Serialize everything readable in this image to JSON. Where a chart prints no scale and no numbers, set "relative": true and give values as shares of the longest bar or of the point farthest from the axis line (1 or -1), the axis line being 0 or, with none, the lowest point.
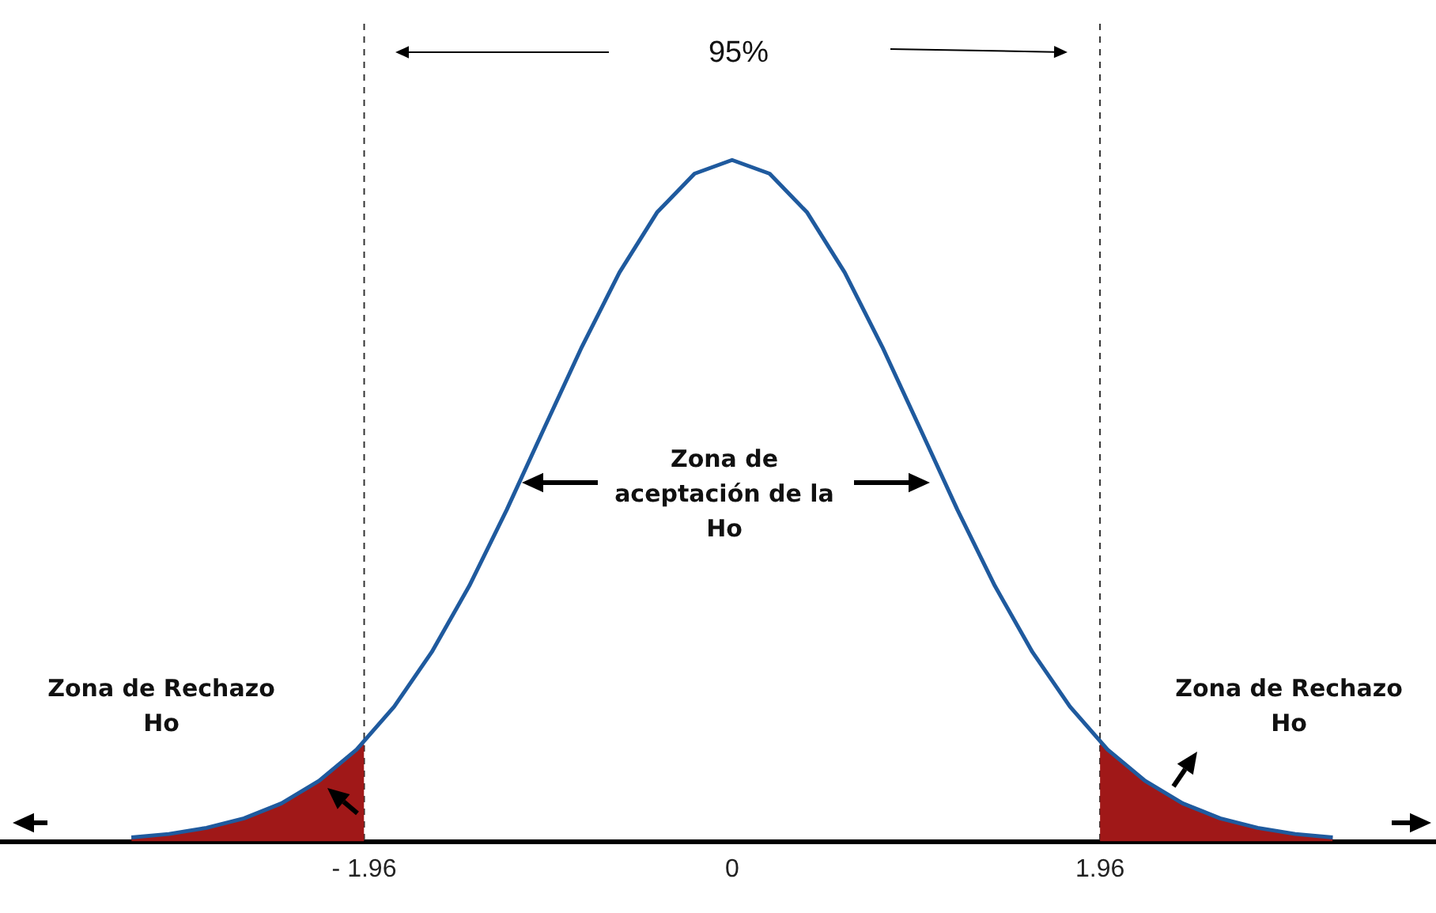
{
  "chart_data": {
    "type": "line",
    "relative": true,
    "xlim": [
      -3.9,
      3.75
    ],
    "xticks": [
      {
        "value": -1.96,
        "label": "- 1.96"
      },
      0,
      1.96
    ],
    "series": [
      {
        "type": "line",
        "color": "#1f5a9e",
        "x": [
          -3.2,
          -3.0,
          -2.8,
          -2.6,
          -2.4,
          -2.2,
          -2.0,
          -1.8,
          -1.6,
          -1.4,
          -1.2,
          -1.0,
          -0.8,
          -0.6,
          -0.4,
          -0.2,
          0,
          0.2,
          0.4,
          0.6,
          0.8,
          1.0,
          1.2,
          1.4,
          1.6,
          1.8,
          2.0,
          2.2,
          2.4,
          2.6,
          2.8,
          3.0,
          3.2
        ],
        "values": [
          0.006,
          0.011,
          0.02,
          0.034,
          0.056,
          0.089,
          0.135,
          0.198,
          0.278,
          0.375,
          0.487,
          0.607,
          0.726,
          0.835,
          0.923,
          0.98,
          1,
          0.98,
          0.923,
          0.835,
          0.726,
          0.607,
          0.487,
          0.375,
          0.278,
          0.198,
          0.135,
          0.089,
          0.056,
          0.034,
          0.02,
          0.011,
          0.006
        ]
      },
      {
        "type": "area",
        "color": "#a01818",
        "x": [
          -3.2,
          -3.0,
          -2.8,
          -2.6,
          -2.4,
          -2.2,
          -2.0,
          -1.96
        ],
        "values": [
          0.006,
          0.011,
          0.02,
          0.034,
          0.056,
          0.089,
          0.135,
          0.146
        ]
      },
      {
        "type": "area",
        "color": "#a01818",
        "x": [
          1.96,
          2.0,
          2.2,
          2.4,
          2.6,
          2.8,
          3.0,
          3.2
        ],
        "values": [
          0.146,
          0.135,
          0.089,
          0.056,
          0.034,
          0.02,
          0.011,
          0.006
        ]
      }
    ],
    "ref_lines": [
      {
        "axis": "x",
        "value": -1.96,
        "color": "#333333",
        "line_style": "dashed"
      },
      {
        "axis": "x",
        "value": 1.96,
        "color": "#333333",
        "line_style": "dashed"
      }
    ],
    "annotations": [
      "95%",
      "Zona de aceptación de la Ho",
      "Zona de Rechazo Ho",
      "Zona de Rechazo Ho"
    ],
    "legend": false,
    "grid": false,
    "marker": "none",
    "line_style": "solid"
  }
}
